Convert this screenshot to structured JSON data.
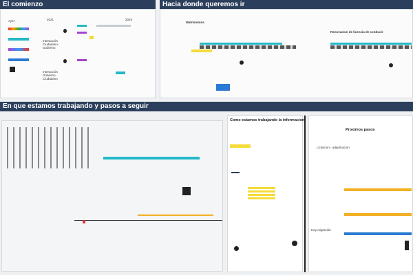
{
  "sections": [
    {
      "title": "El comienzo",
      "labels": [
        "Ayer",
        "2021",
        "2025",
        "Interacción Ciudadano-Gobierno",
        "Interacción Gobierno-Ciudadano"
      ]
    },
    {
      "title": "Hacia donde queremos ir",
      "labels": [
        "Matrimonios",
        "Renovacion de licencia de conducir"
      ]
    },
    {
      "title": "En que estamos trabajando y pasos a seguir",
      "frames": [
        {
          "title": "Como estamos trabajando la informacion"
        },
        {
          "title": "Proximos pasos",
          "labels": [
            "Licitacion - adjudicacion"
          ]
        }
      ],
      "labels": [
        "Hay migración"
      ]
    }
  ]
}
